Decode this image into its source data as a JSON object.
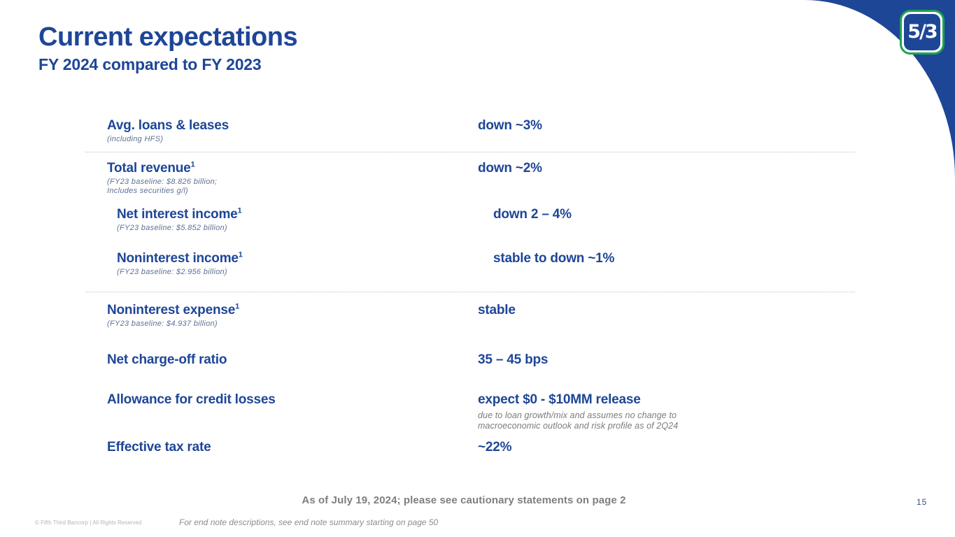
{
  "slide": {
    "title": "Current expectations",
    "subtitle": "FY 2024 compared to FY 2023",
    "page_number": "15",
    "logo_text": "5/3",
    "colors": {
      "brand_blue": "#1e4697",
      "logo_green": "#1fa24e",
      "note_blue_gray": "#5e7195",
      "footer_gray": "#7f7f7f"
    }
  },
  "table": {
    "rows": [
      {
        "label": "Avg. loans & leases",
        "sup": "",
        "notes": [
          "(including HFS)"
        ],
        "value": "down ~3%",
        "value_notes": [],
        "indent": false,
        "divider_after": true
      },
      {
        "label": "Total revenue",
        "sup": "1",
        "notes": [
          "(FY23 baseline: $8.826 billion;",
          "Includes securities g/l)"
        ],
        "value": "down ~2%",
        "value_notes": [],
        "indent": false,
        "divider_after": false
      },
      {
        "label": "Net interest income",
        "sup": "1",
        "notes": [
          "(FY23 baseline: $5.852 billion)"
        ],
        "value": "down 2 – 4%",
        "value_notes": [],
        "indent": true,
        "divider_after": false
      },
      {
        "label": "Noninterest income",
        "sup": "1",
        "notes": [
          "(FY23 baseline: $2.956 billion)"
        ],
        "value": "stable to down ~1%",
        "value_notes": [],
        "indent": true,
        "divider_after": true
      },
      {
        "label": "Noninterest expense",
        "sup": "1",
        "notes": [
          "(FY23 baseline: $4.937 billion)"
        ],
        "value": "stable",
        "value_notes": [],
        "indent": false,
        "divider_after": false
      },
      {
        "label": "Net charge-off ratio",
        "sup": "",
        "notes": [],
        "value": "35 – 45 bps",
        "value_notes": [],
        "indent": false,
        "divider_after": false
      },
      {
        "label": "Allowance for credit losses",
        "sup": "",
        "notes": [],
        "value": "expect $0 - $10MM release",
        "value_notes": [
          "due to loan growth/mix and assumes no change to",
          "macroeconomic outlook and risk profile as of 2Q24"
        ],
        "indent": false,
        "divider_after": false
      },
      {
        "label": "Effective tax rate",
        "sup": "",
        "notes": [],
        "value": "~22%",
        "value_notes": [],
        "indent": false,
        "divider_after": false
      }
    ]
  },
  "footer": {
    "as_of": "As of July 19, 2024; please see cautionary statements on page 2",
    "endnote": "For end note descriptions, see end note summary starting on page 50",
    "copyright": "© Fifth Third Bancorp | All Rights Reserved"
  }
}
